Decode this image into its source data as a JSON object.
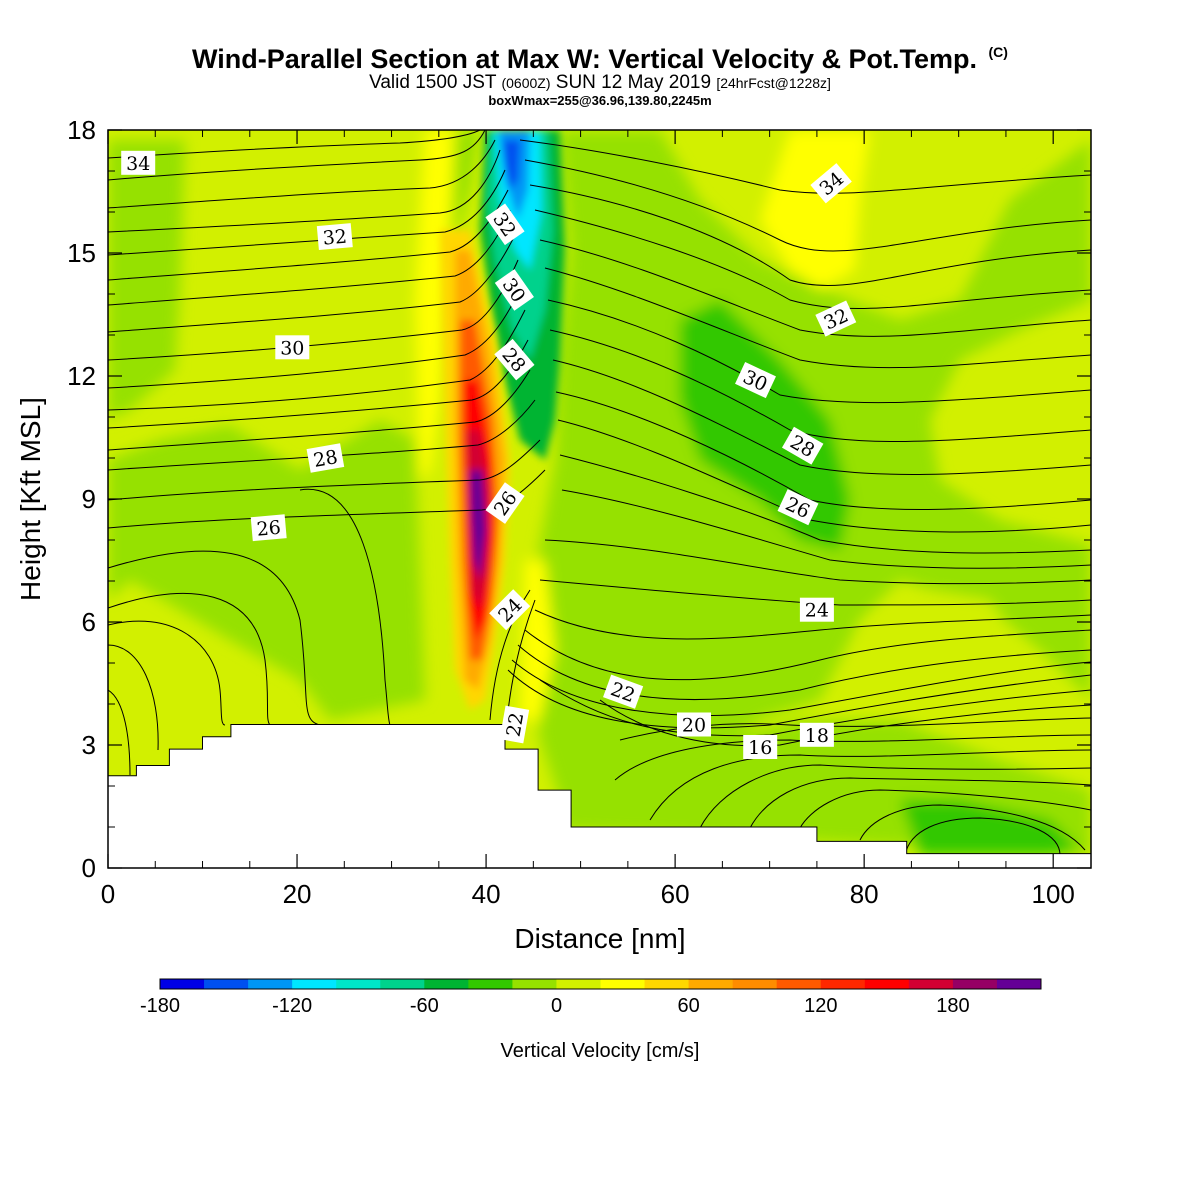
{
  "header": {
    "title": "Wind-Parallel Section at Max W: Vertical Velocity & Pot.Temp.",
    "copyright": "(C)",
    "valid_prefix": "Valid 1500 JST",
    "valid_utc": "(0600Z)",
    "valid_date": "SUN 12 May 2019",
    "forecast": "[24hrFcst@1228z]",
    "box_info": "boxWmax=255@36.96,139.80,2245m"
  },
  "chart_data": {
    "type": "heatmap",
    "xlabel": "Distance [nm]",
    "ylabel": "Height [Kft MSL]",
    "xlim": [
      0,
      104
    ],
    "ylim": [
      0,
      18
    ],
    "x_ticks": [
      "0",
      "20",
      "40",
      "60",
      "80",
      "100"
    ],
    "y_ticks": [
      "0",
      "3",
      "6",
      "9",
      "12",
      "15",
      "18"
    ],
    "colorbar": {
      "title": "Vertical Velocity [cm/s]",
      "tick_labels": [
        "-180",
        "-120",
        "-60",
        "0",
        "60",
        "120",
        "180"
      ],
      "tick_values": [
        -180,
        -120,
        -60,
        0,
        60,
        120,
        180
      ],
      "range": [
        -180,
        220
      ],
      "colors": [
        "#0000e6",
        "#0050f0",
        "#0096f5",
        "#00e6ff",
        "#00e6c8",
        "#00d28c",
        "#00b432",
        "#32c800",
        "#96e100",
        "#d2f000",
        "#ffff00",
        "#ffd700",
        "#ffaa00",
        "#ff8c00",
        "#ff5a00",
        "#ff2800",
        "#ff0000",
        "#d20032",
        "#960064",
        "#640096"
      ]
    },
    "terrain_kft": [
      [
        0,
        2.25
      ],
      [
        3,
        2.25
      ],
      [
        3,
        2.5
      ],
      [
        6.5,
        2.5
      ],
      [
        6.5,
        2.9
      ],
      [
        10,
        2.9
      ],
      [
        10,
        3.2
      ],
      [
        13,
        3.2
      ],
      [
        13,
        3.5
      ],
      [
        42,
        3.5
      ],
      [
        42,
        2.9
      ],
      [
        45.5,
        2.9
      ],
      [
        45.5,
        1.9
      ],
      [
        49,
        1.9
      ],
      [
        49,
        1.0
      ],
      [
        75,
        1.0
      ],
      [
        75,
        0.65
      ],
      [
        84.5,
        0.65
      ],
      [
        84.5,
        0.35
      ],
      [
        104,
        0.35
      ]
    ],
    "theta_contours": [
      {
        "label": "16",
        "x": 69,
        "y": 2.95,
        "angle": 0
      },
      {
        "label": "18",
        "x": 75,
        "y": 3.25,
        "angle": 0
      },
      {
        "label": "20",
        "x": 62,
        "y": 3.5,
        "angle": 0
      },
      {
        "label": "22",
        "x": 54.5,
        "y": 4.3,
        "angle": 20
      },
      {
        "label": "22",
        "x": 43,
        "y": 3.5,
        "angle": -80
      },
      {
        "label": "24",
        "x": 75,
        "y": 6.3,
        "angle": 0
      },
      {
        "label": "24",
        "x": 42.5,
        "y": 6.3,
        "angle": -45
      },
      {
        "label": "26",
        "x": 17,
        "y": 8.3,
        "angle": -5
      },
      {
        "label": "26",
        "x": 42,
        "y": 8.9,
        "angle": -55
      },
      {
        "label": "26",
        "x": 73,
        "y": 8.8,
        "angle": 25
      },
      {
        "label": "28",
        "x": 23,
        "y": 10.0,
        "angle": -10
      },
      {
        "label": "28",
        "x": 43,
        "y": 12.4,
        "angle": 50
      },
      {
        "label": "28",
        "x": 73.5,
        "y": 10.3,
        "angle": 30
      },
      {
        "label": "30",
        "x": 19.5,
        "y": 12.7,
        "angle": 0
      },
      {
        "label": "30",
        "x": 43,
        "y": 14.1,
        "angle": 55
      },
      {
        "label": "30",
        "x": 68.5,
        "y": 11.9,
        "angle": 25
      },
      {
        "label": "32",
        "x": 24,
        "y": 15.4,
        "angle": -5
      },
      {
        "label": "32",
        "x": 42,
        "y": 15.7,
        "angle": 55
      },
      {
        "label": "32",
        "x": 77,
        "y": 13.4,
        "angle": -25
      },
      {
        "label": "34",
        "x": 3.2,
        "y": 17.2,
        "angle": 0
      },
      {
        "label": "34",
        "x": 76.5,
        "y": 16.7,
        "angle": -40
      }
    ]
  }
}
